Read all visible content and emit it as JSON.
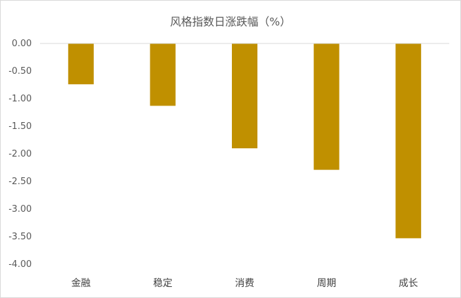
{
  "chart_data": {
    "type": "bar",
    "title": "风格指数日涨跌幅（%）",
    "categories": [
      "金融",
      "稳定",
      "消费",
      "周期",
      "成长"
    ],
    "values": [
      -0.74,
      -1.13,
      -1.9,
      -2.29,
      -3.53
    ],
    "ylim": [
      -4.0,
      0.0
    ],
    "yticks": [
      "0.00",
      "-0.50",
      "-1.00",
      "-1.50",
      "-2.00",
      "-2.50",
      "-3.00",
      "-3.50",
      "-4.00"
    ],
    "bar_color": "#C09000",
    "grid": false,
    "legend": "none",
    "xlabel": "",
    "ylabel": ""
  }
}
